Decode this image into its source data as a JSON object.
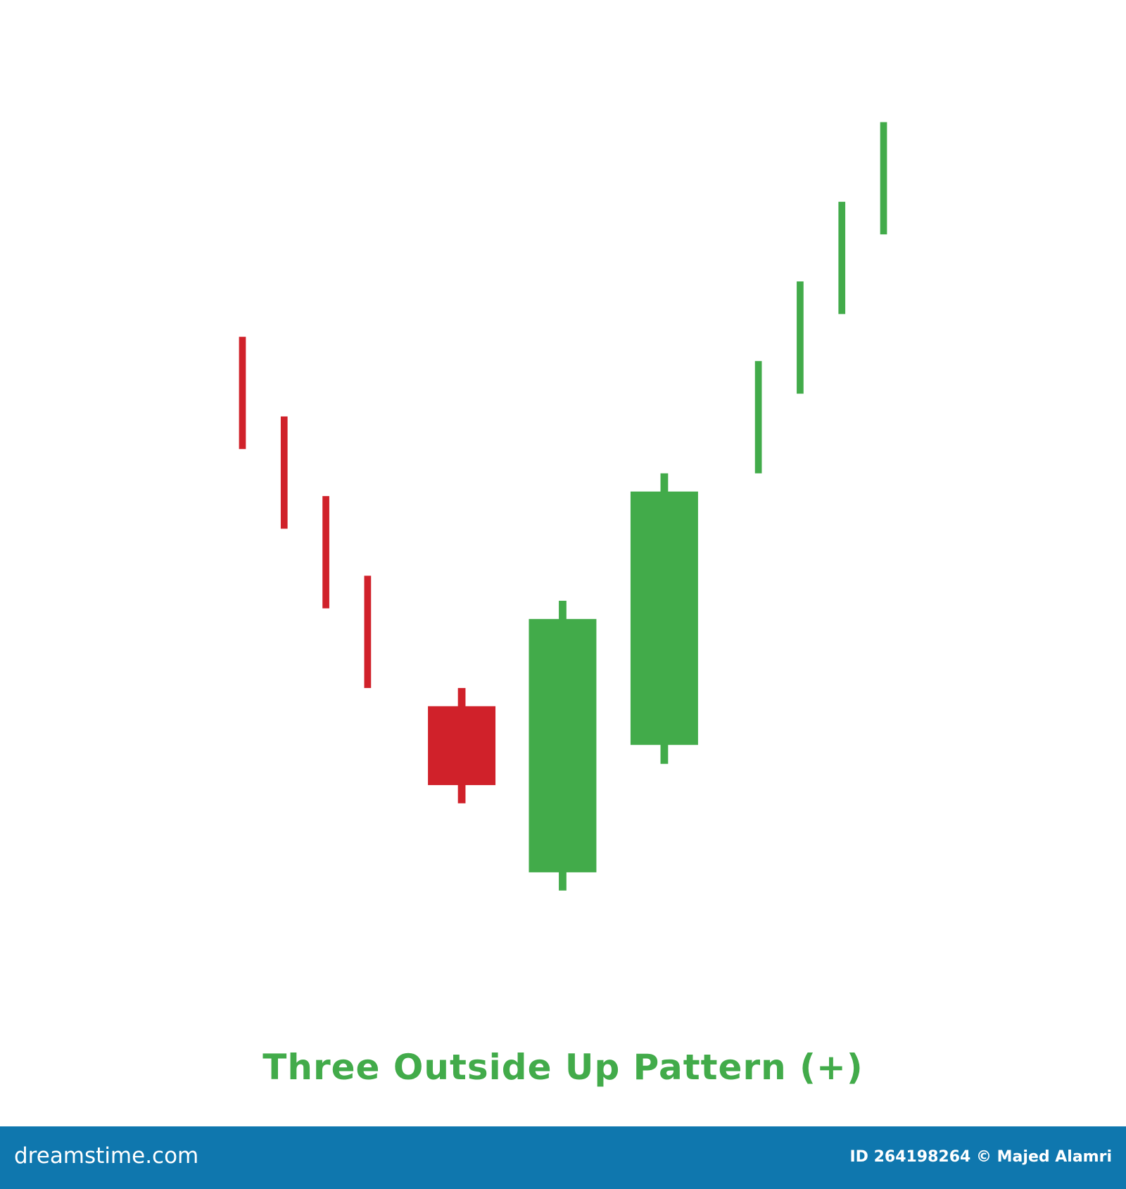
{
  "chart_data": {
    "type": "candlestick",
    "title": "Three Outside Up Pattern (+)",
    "xlabel": "",
    "ylabel": "",
    "grid": false,
    "colors": {
      "bearish": "#d0212a",
      "bullish": "#42ab4a",
      "title": "#42ab4a"
    },
    "candles": [
      {
        "open": 85.6,
        "high": 85.6,
        "low": 70.8,
        "close": 70.8,
        "color": "bearish"
      },
      {
        "open": 75.1,
        "high": 75.1,
        "low": 60.3,
        "close": 60.3,
        "color": "bearish"
      },
      {
        "open": 64.6,
        "high": 64.6,
        "low": 49.8,
        "close": 49.8,
        "color": "bearish"
      },
      {
        "open": 54.1,
        "high": 54.1,
        "low": 39.3,
        "close": 39.3,
        "color": "bearish"
      },
      {
        "open": 36.9,
        "high": 39.3,
        "low": 24.1,
        "close": 26.5,
        "color": "bearish"
      },
      {
        "open": 15.0,
        "high": 50.8,
        "low": 12.6,
        "close": 48.4,
        "color": "bullish"
      },
      {
        "open": 31.8,
        "high": 67.6,
        "low": 29.3,
        "close": 65.2,
        "color": "bullish"
      },
      {
        "open": 67.6,
        "high": 82.4,
        "low": 67.6,
        "close": 82.4,
        "color": "bullish"
      },
      {
        "open": 78.1,
        "high": 92.9,
        "low": 78.1,
        "close": 92.9,
        "color": "bullish"
      },
      {
        "open": 88.6,
        "high": 103.4,
        "low": 88.6,
        "close": 103.4,
        "color": "bullish"
      },
      {
        "open": 99.1,
        "high": 113.9,
        "low": 99.1,
        "close": 113.9,
        "color": "bullish"
      }
    ]
  },
  "footer": {
    "logo": "dreamstime.com",
    "credit": "ID 264198264 © Majed Alamri",
    "background": "#0f77ae"
  }
}
